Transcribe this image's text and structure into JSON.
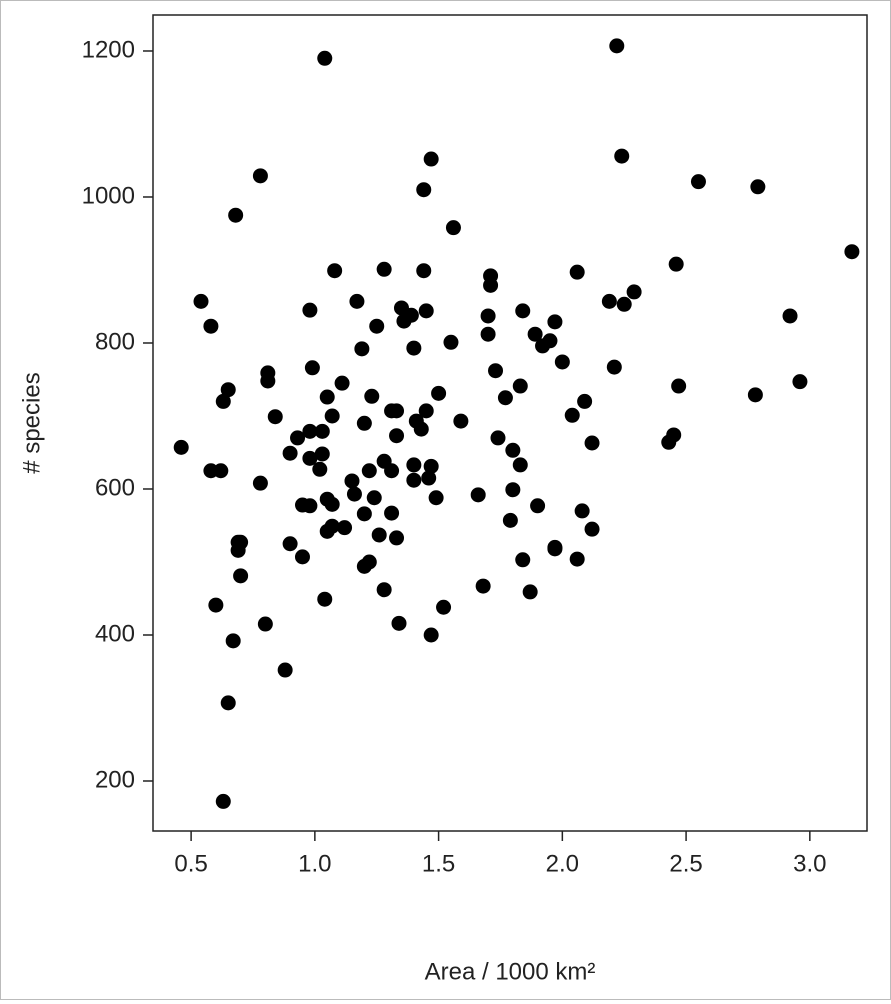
{
  "chart_data": {
    "type": "scatter",
    "xlabel": "Area / 1000 km²",
    "ylabel": "# species",
    "xlim": [
      0.346,
      3.231
    ],
    "ylim": [
      131.5,
      1249.3
    ],
    "xticks": [
      0.5,
      {
        "value": 1,
        "label": "1.0"
      },
      1.5,
      {
        "value": 2,
        "label": "2.0"
      },
      2.5,
      {
        "value": 3,
        "label": "3.0"
      }
    ],
    "yticks": [
      200,
      400,
      600,
      800,
      1000,
      1200
    ],
    "color": "#000000",
    "x": [
      0.46,
      0.54,
      0.58,
      0.58,
      0.62,
      0.6,
      0.63,
      0.65,
      0.68,
      0.78,
      0.81,
      0.81,
      0.84,
      0.78,
      0.69,
      0.7,
      0.69,
      0.7,
      0.67,
      0.65,
      0.63,
      0.8,
      0.88,
      0.9,
      0.9,
      0.93,
      0.95,
      0.95,
      0.98,
      0.98,
      0.98,
      0.99,
      0.98,
      1.03,
      1.03,
      1.02,
      1.04,
      1.04,
      1.05,
      1.07,
      1.05,
      1.07,
      1.05,
      1.07,
      1.08,
      1.11,
      1.12,
      1.15,
      1.16,
      1.17,
      1.19,
      1.2,
      1.2,
      1.2,
      1.22,
      1.22,
      1.23,
      1.24,
      1.25,
      1.26,
      1.28,
      1.28,
      1.28,
      1.31,
      1.31,
      1.31,
      1.33,
      1.33,
      1.33,
      1.34,
      1.35,
      1.36,
      1.39,
      1.4,
      1.4,
      1.4,
      1.41,
      1.43,
      1.44,
      1.44,
      1.45,
      1.45,
      1.46,
      1.47,
      1.47,
      1.47,
      1.49,
      1.5,
      1.52,
      1.55,
      1.56,
      1.59,
      1.66,
      1.68,
      1.7,
      1.7,
      1.71,
      1.71,
      1.73,
      1.74,
      1.77,
      1.79,
      1.8,
      1.8,
      1.83,
      1.83,
      1.84,
      1.84,
      1.87,
      1.89,
      1.9,
      1.92,
      1.95,
      1.97,
      1.97,
      1.97,
      2.0,
      2.04,
      2.06,
      2.06,
      2.08,
      2.09,
      2.12,
      2.12,
      2.19,
      2.21,
      2.22,
      2.24,
      2.25,
      2.29,
      2.43,
      2.45,
      2.46,
      2.47,
      2.55,
      2.78,
      2.79,
      2.92,
      2.96,
      3.17
    ],
    "values": [
      657,
      857,
      823,
      625,
      625,
      441,
      720,
      736,
      975,
      1029,
      759,
      748,
      699,
      608,
      527,
      527,
      516,
      481,
      392,
      307,
      172,
      415,
      352,
      525,
      649,
      670,
      578,
      507,
      679,
      577,
      845,
      766,
      642,
      679,
      648,
      627,
      449,
      1190,
      726,
      700,
      586,
      579,
      542,
      549,
      899,
      745,
      547,
      611,
      593,
      857,
      792,
      690,
      566,
      494,
      625,
      500,
      727,
      588,
      823,
      537,
      901,
      462,
      638,
      707,
      625,
      567,
      533,
      707,
      673,
      416,
      848,
      830,
      838,
      633,
      612,
      793,
      693,
      682,
      1010,
      899,
      707,
      844,
      615,
      400,
      1052,
      631,
      588,
      731,
      438,
      801,
      958,
      693,
      592,
      467,
      812,
      837,
      879,
      892,
      762,
      670,
      725,
      557,
      653,
      599,
      741,
      633,
      844,
      503,
      459,
      812,
      577,
      796,
      803,
      829,
      520,
      518,
      774,
      701,
      504,
      897,
      570,
      720,
      663,
      545,
      857,
      767,
      1207,
      1056,
      853,
      870,
      664,
      674,
      908,
      741,
      1021,
      729,
      1014,
      837,
      747,
      925
    ]
  }
}
